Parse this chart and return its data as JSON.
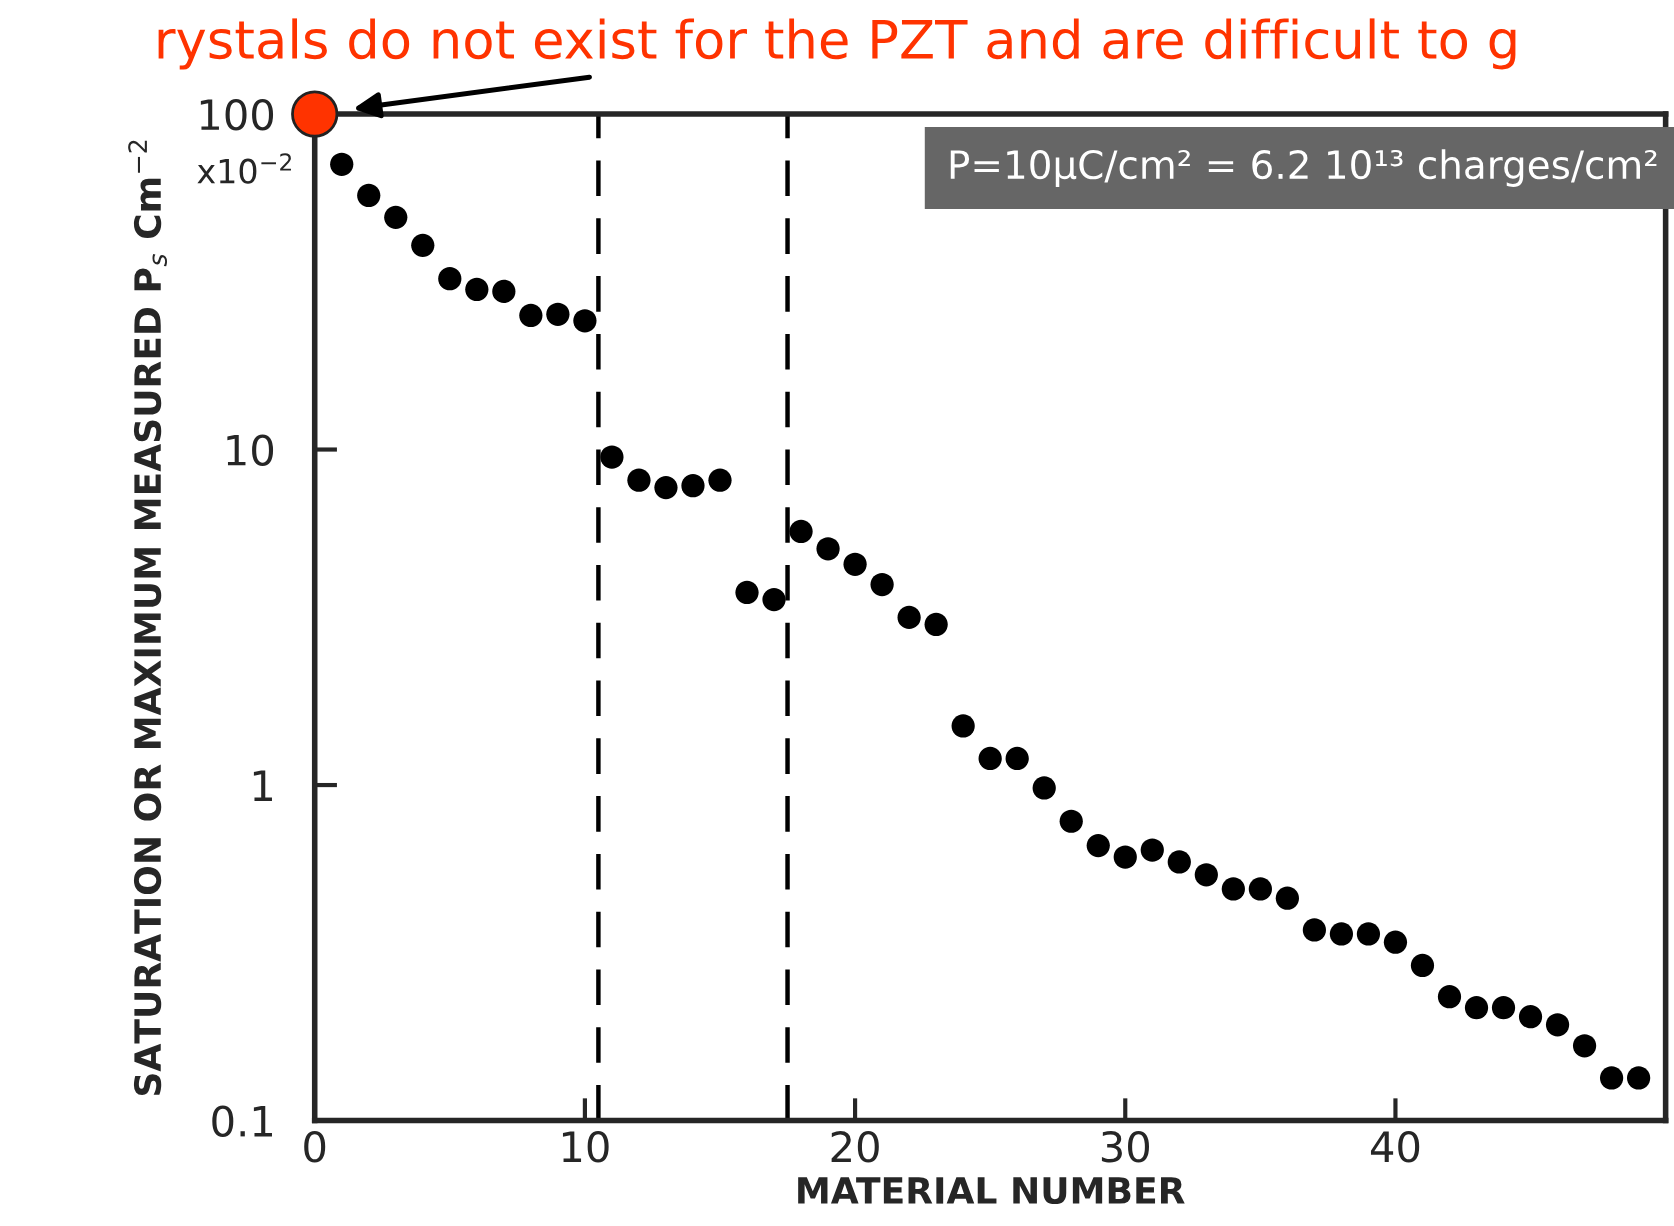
{
  "chart_data": {
    "type": "scatter",
    "xlabel": "MATERIAL NUMBER",
    "ylabel": "SATURATION OR MAXIMUM MEASURED P$_{s}$ Cm$^{−2}$",
    "x": [
      1,
      2,
      3,
      4,
      5,
      6,
      7,
      8,
      9,
      10,
      11,
      12,
      13,
      14,
      15,
      16,
      17,
      18,
      19,
      20,
      21,
      22,
      23,
      24,
      25,
      26,
      27,
      28,
      29,
      30,
      31,
      32,
      33,
      34,
      35,
      36,
      37,
      38,
      39,
      40,
      41,
      42,
      43,
      44,
      45,
      46,
      47,
      48,
      49
    ],
    "series": [
      {
        "color": "#000000",
        "values": [
          70.8,
          57.2,
          49.2,
          40.6,
          32.3,
          30,
          29.6,
          25.1,
          25.3,
          24.2,
          9.5,
          8.1,
          7.7,
          7.8,
          8.1,
          3.75,
          3.57,
          5.7,
          5.06,
          4.55,
          3.96,
          3.16,
          3.01,
          1.5,
          1.2,
          1.2,
          0.98,
          0.78,
          0.66,
          0.61,
          0.64,
          0.59,
          0.54,
          0.49,
          0.49,
          0.46,
          0.37,
          0.36,
          0.36,
          0.34,
          0.29,
          0.234,
          0.217,
          0.217,
          0.204,
          0.193,
          0.167,
          0.134,
          0.134
        ]
      }
    ],
    "marker": "circle",
    "log": "y",
    "xlim": [
      0,
      50
    ],
    "xticks": [
      0,
      10,
      20,
      30,
      40
    ],
    "ylim": [
      0.1,
      100
    ],
    "yticks": [
      0.1,
      1,
      10,
      100
    ],
    "ref_lines": [
      {
        "axis": "x",
        "value": 10.5,
        "color": "#000000",
        "line_style": "dashed"
      },
      {
        "axis": "x",
        "value": 17.5,
        "color": "#000000",
        "line_style": "dashed"
      }
    ],
    "annotations": [
      "x10$^{−2}$",
      "P=10μC/cm² = 6.2 10¹³ charges/cm²",
      {
        "text": "rystals do not exist for the PZT and are difficult to g",
        "x": 0,
        "y": 100
      }
    ],
    "grid": false,
    "legend": false
  }
}
